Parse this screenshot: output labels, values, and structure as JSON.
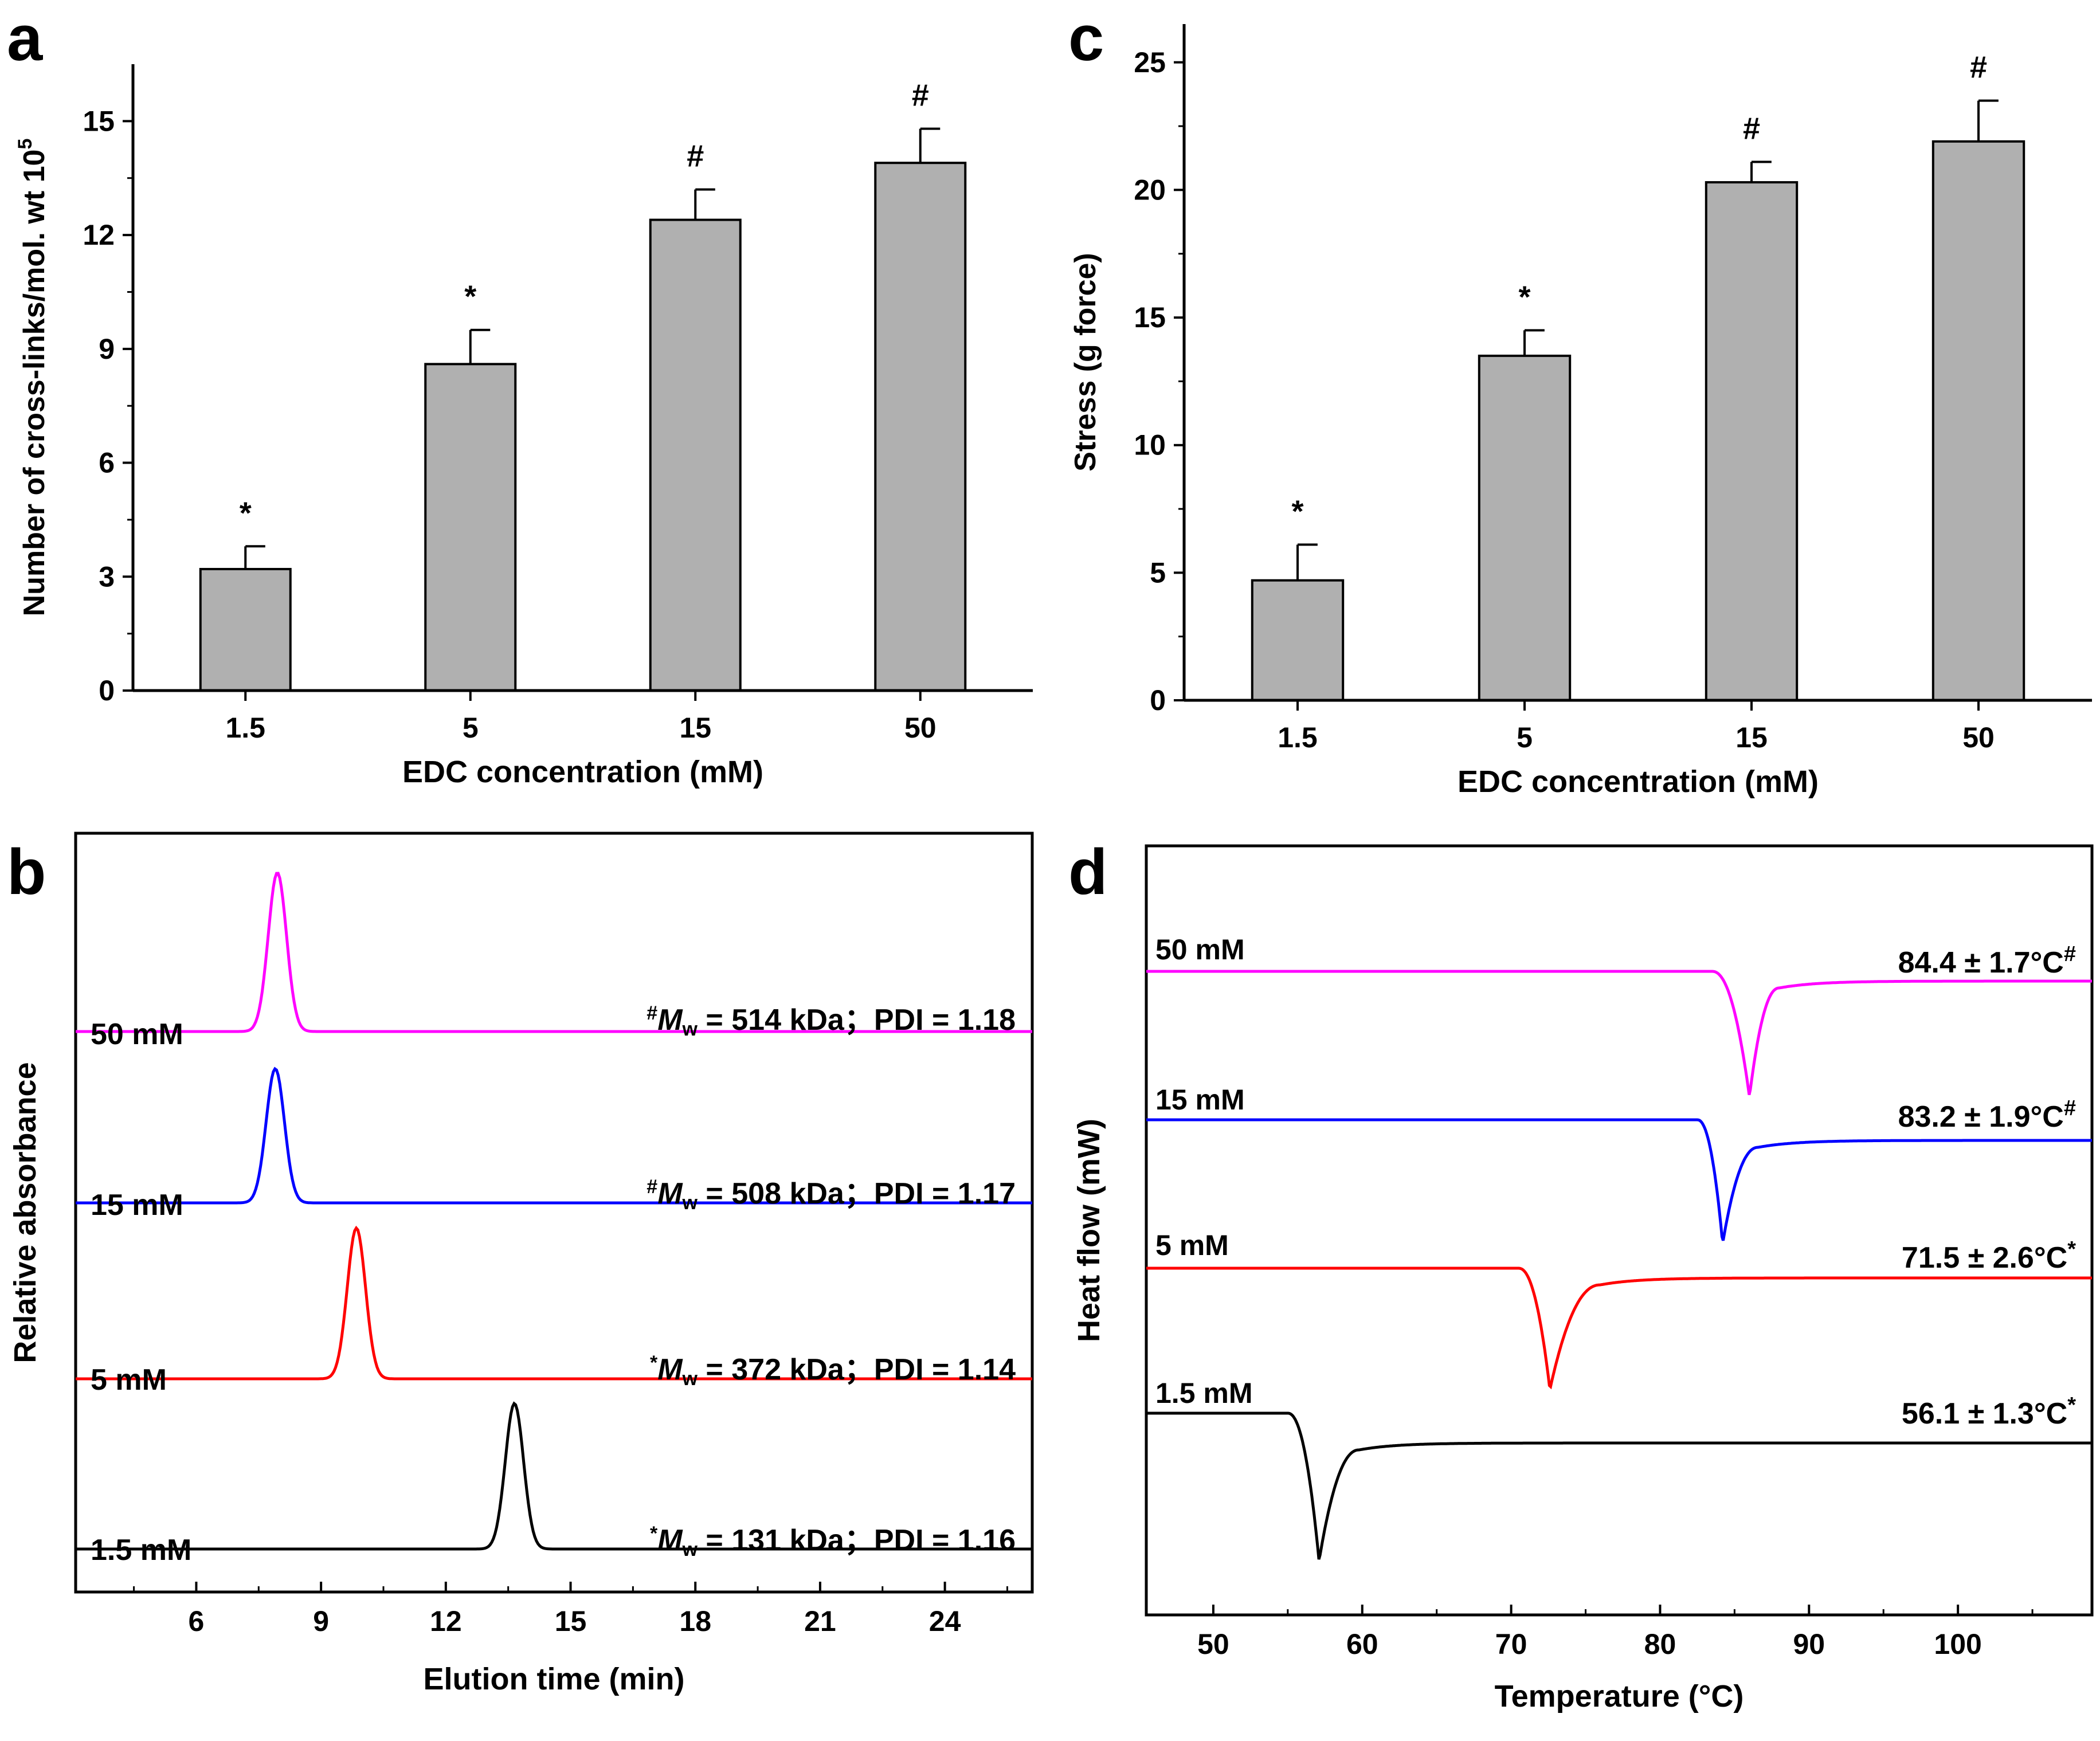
{
  "chart_data": [
    {
      "id": "a",
      "panel_label": "a",
      "type": "bar",
      "categories": [
        "1.5",
        "5",
        "15",
        "50"
      ],
      "values": [
        3.2,
        8.6,
        12.4,
        13.9
      ],
      "errors": [
        0.6,
        0.9,
        0.8,
        0.9
      ],
      "significance": [
        "*",
        "*",
        "#",
        "#"
      ],
      "ylabel_main": "Number of cross-links/mol. wt 10",
      "ylabel_sup": "5",
      "xlabel": "EDC concentration (mM)",
      "ylim": [
        0,
        16.5
      ],
      "yticks": [
        0,
        3,
        6,
        9,
        12,
        15
      ],
      "bar_color": "#b0b0b0"
    },
    {
      "id": "c",
      "panel_label": "c",
      "type": "bar",
      "categories": [
        "1.5",
        "5",
        "15",
        "50"
      ],
      "values": [
        4.7,
        13.5,
        20.3,
        21.9
      ],
      "errors": [
        1.4,
        1.0,
        0.8,
        1.6
      ],
      "significance": [
        "*",
        "*",
        "#",
        "#"
      ],
      "ylabel_main": "Stress (g force)",
      "ylabel_sup": "",
      "xlabel": "EDC concentration (mM)",
      "ylim": [
        0,
        26.5
      ],
      "yticks": [
        0,
        5,
        10,
        15,
        20,
        25
      ],
      "bar_color": "#b0b0b0"
    },
    {
      "id": "b",
      "panel_label": "b",
      "type": "line",
      "xlabel": "Elution time (min)",
      "ylabel": "Relative absorbance",
      "xlim": [
        3.1,
        26.1
      ],
      "xticks": [
        6,
        9,
        12,
        15,
        18,
        21,
        24
      ],
      "series": [
        {
          "name": "50 mM",
          "color": "#ff00ff",
          "peak": 7.95,
          "sigma": 0.22,
          "annotation": {
            "mark": "#",
            "main": "M",
            "sub": "w",
            "rest": " = 514 kDa；PDI = 1.18"
          }
        },
        {
          "name": "15 mM",
          "color": "#0000ff",
          "peak": 7.9,
          "sigma": 0.22,
          "annotation": {
            "mark": "#",
            "main": "M",
            "sub": "w",
            "rest": " = 508 kDa；PDI = 1.17"
          }
        },
        {
          "name": "5 mM",
          "color": "#ff0000",
          "peak": 9.85,
          "sigma": 0.22,
          "annotation": {
            "mark": "*",
            "main": "M",
            "sub": "w",
            "rest": " = 372 kDa；PDI = 1.14"
          }
        },
        {
          "name": "1.5 mM",
          "color": "#000000",
          "peak": 13.65,
          "sigma": 0.22,
          "annotation": {
            "mark": "*",
            "main": "M",
            "sub": "w",
            "rest": " = 131 kDa；PDI = 1.16"
          }
        }
      ]
    },
    {
      "id": "d",
      "panel_label": "d",
      "type": "line",
      "xlabel": "Temperature (°C)",
      "ylabel": "Heat flow (mW)",
      "xlim": [
        45.5,
        109
      ],
      "xticks": [
        50,
        60,
        70,
        80,
        90,
        100
      ],
      "series": [
        {
          "name": "50 mM",
          "color": "#ff00ff",
          "peak": 86.0,
          "onset": 83.5,
          "end": 88.0,
          "annotation": {
            "value": "84.4 ± 1.7°C",
            "mark": "#"
          }
        },
        {
          "name": "15 mM",
          "color": "#0000ff",
          "peak": 84.2,
          "onset": 82.5,
          "end": 86.6,
          "annotation": {
            "value": "83.2 ± 1.9°C",
            "mark": "#"
          }
        },
        {
          "name": "5 mM",
          "color": "#ff0000",
          "peak": 72.6,
          "onset": 70.5,
          "end": 76.0,
          "annotation": {
            "value": "71.5 ± 2.6°C",
            "mark": "*"
          }
        },
        {
          "name": "1.5 mM",
          "color": "#000000",
          "peak": 57.1,
          "onset": 55.0,
          "end": 59.8,
          "annotation": {
            "value": "56.1 ± 1.3°C",
            "mark": "*"
          }
        }
      ]
    }
  ]
}
